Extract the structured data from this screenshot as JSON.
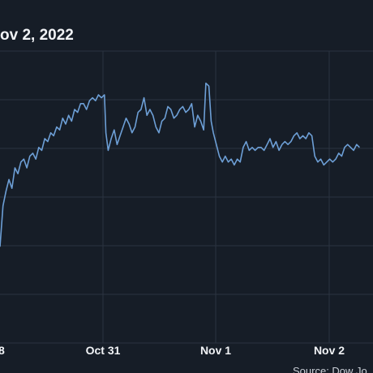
{
  "colors": {
    "background": "#161d27",
    "grid": "#2b3440",
    "line": "#6d9fd6",
    "text": "#f1f3f6",
    "source_text": "#c9ced6"
  },
  "chart_data": {
    "type": "line",
    "title": "ov 2, 2022",
    "xlabel": "",
    "ylabel": "",
    "x_ticks": [
      "8",
      "Oct 31",
      "Nov 1",
      "Nov 2"
    ],
    "source": "Source: Dow Jo",
    "grid": true,
    "y_gridline_count": 6,
    "series": [
      {
        "values": [
          [
            0.0,
            0.33
          ],
          [
            0.8,
            0.47
          ],
          [
            1.6,
            0.52
          ],
          [
            2.4,
            0.56
          ],
          [
            3.2,
            0.53
          ],
          [
            4.0,
            0.6
          ],
          [
            4.8,
            0.58
          ],
          [
            5.6,
            0.62
          ],
          [
            6.4,
            0.63
          ],
          [
            7.2,
            0.6
          ],
          [
            8.0,
            0.64
          ],
          [
            8.8,
            0.65
          ],
          [
            9.6,
            0.63
          ],
          [
            10.4,
            0.67
          ],
          [
            11.2,
            0.66
          ],
          [
            12.0,
            0.7
          ],
          [
            12.8,
            0.69
          ],
          [
            13.6,
            0.72
          ],
          [
            14.4,
            0.71
          ],
          [
            15.2,
            0.74
          ],
          [
            16.0,
            0.73
          ],
          [
            16.8,
            0.77
          ],
          [
            17.6,
            0.75
          ],
          [
            18.4,
            0.78
          ],
          [
            19.2,
            0.76
          ],
          [
            20.0,
            0.8
          ],
          [
            20.8,
            0.79
          ],
          [
            21.6,
            0.82
          ],
          [
            22.4,
            0.82
          ],
          [
            23.2,
            0.8
          ],
          [
            24.0,
            0.83
          ],
          [
            24.8,
            0.84
          ],
          [
            25.6,
            0.83
          ],
          [
            26.4,
            0.85
          ],
          [
            27.2,
            0.84
          ],
          [
            28.0,
            0.85
          ],
          [
            28.4,
            0.72
          ],
          [
            29.0,
            0.66
          ],
          [
            29.8,
            0.7
          ],
          [
            30.6,
            0.73
          ],
          [
            31.4,
            0.68
          ],
          [
            32.2,
            0.71
          ],
          [
            33.0,
            0.74
          ],
          [
            33.8,
            0.77
          ],
          [
            34.6,
            0.75
          ],
          [
            35.4,
            0.72
          ],
          [
            36.2,
            0.74
          ],
          [
            37.0,
            0.79
          ],
          [
            37.8,
            0.8
          ],
          [
            38.6,
            0.84
          ],
          [
            39.4,
            0.78
          ],
          [
            40.2,
            0.8
          ],
          [
            41.0,
            0.78
          ],
          [
            41.8,
            0.74
          ],
          [
            42.6,
            0.72
          ],
          [
            43.4,
            0.76
          ],
          [
            44.2,
            0.77
          ],
          [
            45.0,
            0.81
          ],
          [
            45.8,
            0.8
          ],
          [
            46.6,
            0.77
          ],
          [
            47.4,
            0.78
          ],
          [
            48.2,
            0.8
          ],
          [
            49.0,
            0.81
          ],
          [
            49.8,
            0.79
          ],
          [
            50.6,
            0.8
          ],
          [
            51.4,
            0.82
          ],
          [
            52.2,
            0.74
          ],
          [
            53.0,
            0.78
          ],
          [
            53.8,
            0.76
          ],
          [
            54.6,
            0.73
          ],
          [
            55.2,
            0.89
          ],
          [
            56.0,
            0.88
          ],
          [
            56.6,
            0.76
          ],
          [
            57.2,
            0.72
          ],
          [
            58.0,
            0.68
          ],
          [
            58.8,
            0.64
          ],
          [
            59.6,
            0.62
          ],
          [
            60.4,
            0.64
          ],
          [
            61.2,
            0.62
          ],
          [
            62.0,
            0.63
          ],
          [
            62.8,
            0.61
          ],
          [
            63.6,
            0.63
          ],
          [
            64.4,
            0.62
          ],
          [
            65.2,
            0.67
          ],
          [
            66.0,
            0.69
          ],
          [
            66.8,
            0.66
          ],
          [
            67.6,
            0.67
          ],
          [
            68.4,
            0.66
          ],
          [
            69.2,
            0.67
          ],
          [
            70.0,
            0.67
          ],
          [
            70.8,
            0.66
          ],
          [
            71.6,
            0.68
          ],
          [
            72.4,
            0.7
          ],
          [
            73.2,
            0.67
          ],
          [
            74.0,
            0.69
          ],
          [
            74.8,
            0.66
          ],
          [
            75.6,
            0.68
          ],
          [
            76.4,
            0.69
          ],
          [
            77.2,
            0.68
          ],
          [
            78.0,
            0.69
          ],
          [
            78.8,
            0.71
          ],
          [
            79.6,
            0.72
          ],
          [
            80.4,
            0.7
          ],
          [
            81.2,
            0.71
          ],
          [
            82.0,
            0.7
          ],
          [
            82.8,
            0.72
          ],
          [
            83.6,
            0.71
          ],
          [
            84.4,
            0.64
          ],
          [
            85.2,
            0.62
          ],
          [
            86.0,
            0.63
          ],
          [
            86.8,
            0.61
          ],
          [
            87.6,
            0.62
          ],
          [
            88.4,
            0.63
          ],
          [
            89.2,
            0.62
          ],
          [
            90.0,
            0.63
          ],
          [
            90.8,
            0.65
          ],
          [
            91.6,
            0.64
          ],
          [
            92.4,
            0.67
          ],
          [
            93.2,
            0.68
          ],
          [
            94.0,
            0.67
          ],
          [
            94.8,
            0.66
          ],
          [
            95.6,
            0.68
          ],
          [
            96.4,
            0.67
          ]
        ]
      }
    ]
  }
}
